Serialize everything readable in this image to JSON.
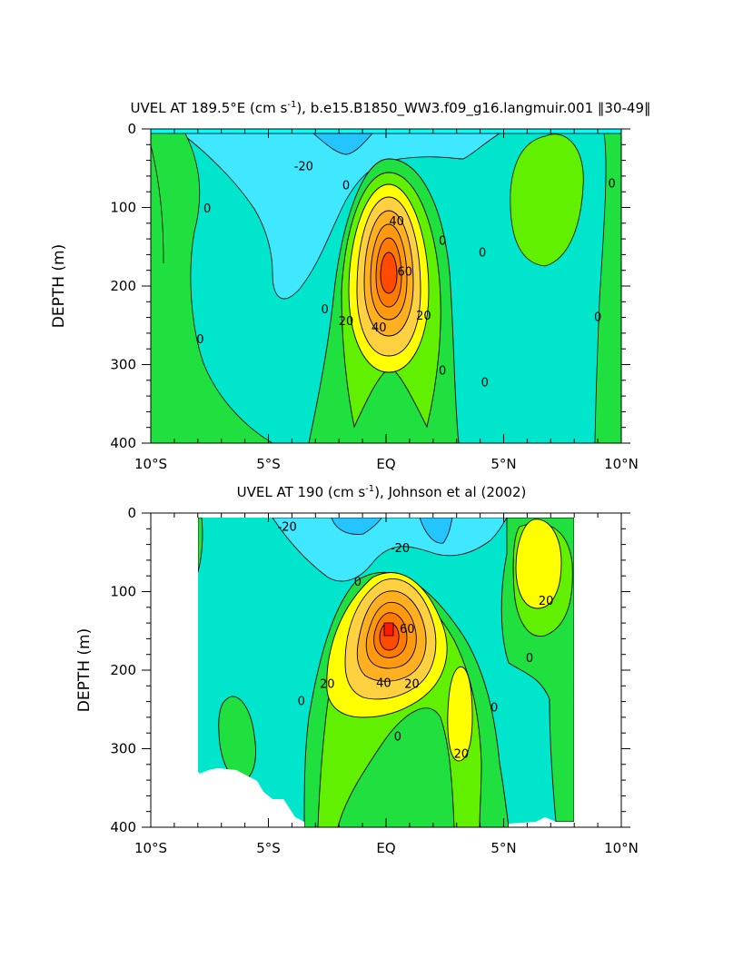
{
  "chart_data": [
    {
      "type": "heatmap",
      "subtype": "filled-contour",
      "title_pre": "UVEL AT 189.5°E (cm s",
      "title_sup": "-1",
      "title_post": "), b.e15.B1850_WW3.f09_g16.langmuir.001 ‖30-49‖",
      "xlabel": "",
      "ylabel": "DEPTH (m)",
      "xlim": [
        -10,
        10
      ],
      "ylim": [
        400,
        0
      ],
      "x_ticks": [
        {
          "value": -10,
          "label": "10°S"
        },
        {
          "value": -5,
          "label": "5°S"
        },
        {
          "value": 0,
          "label": "EQ"
        },
        {
          "value": 5,
          "label": "5°N"
        },
        {
          "value": 10,
          "label": "10°N"
        }
      ],
      "y_ticks": [
        {
          "value": 0,
          "label": "0"
        },
        {
          "value": 100,
          "label": "100"
        },
        {
          "value": 200,
          "label": "200"
        },
        {
          "value": 300,
          "label": "300"
        },
        {
          "value": 400,
          "label": "400"
        }
      ],
      "contour_interval": 10,
      "data_depth_range": [
        5,
        400
      ],
      "core": {
        "lat": 0,
        "depth": 165,
        "max_value": 75
      },
      "contour_labels": [
        {
          "text": "-20",
          "lat": -3.5,
          "depth": 48
        },
        {
          "text": "0",
          "lat": -7.6,
          "depth": 102
        },
        {
          "text": "0",
          "lat": -7.9,
          "depth": 268
        },
        {
          "text": "0",
          "lat": -1.7,
          "depth": 72
        },
        {
          "text": "0",
          "lat": -2.6,
          "depth": 230
        },
        {
          "text": "40",
          "lat": 0.45,
          "depth": 118
        },
        {
          "text": "60",
          "lat": 0.8,
          "depth": 182
        },
        {
          "text": "20",
          "lat": -1.7,
          "depth": 245
        },
        {
          "text": "40",
          "lat": -0.3,
          "depth": 253
        },
        {
          "text": "20",
          "lat": 1.6,
          "depth": 238
        },
        {
          "text": "0",
          "lat": 2.4,
          "depth": 143
        },
        {
          "text": "0",
          "lat": 2.4,
          "depth": 308
        },
        {
          "text": "0",
          "lat": 4.1,
          "depth": 158
        },
        {
          "text": "0",
          "lat": 4.2,
          "depth": 323
        },
        {
          "text": "0",
          "lat": 9.6,
          "depth": 70
        },
        {
          "text": "0",
          "lat": 9.0,
          "depth": 240
        }
      ]
    },
    {
      "type": "heatmap",
      "subtype": "filled-contour",
      "title_pre": "UVEL AT 190 (cm s",
      "title_sup": "-1",
      "title_post": "), Johnson et al (2002)",
      "xlabel": "",
      "ylabel": "DEPTH (m)",
      "xlim": [
        -10,
        10
      ],
      "ylim": [
        400,
        0
      ],
      "x_ticks": [
        {
          "value": -10,
          "label": "10°S"
        },
        {
          "value": -5,
          "label": "5°S"
        },
        {
          "value": 0,
          "label": "EQ"
        },
        {
          "value": 5,
          "label": "5°N"
        },
        {
          "value": 10,
          "label": "10°N"
        }
      ],
      "y_ticks": [
        {
          "value": 0,
          "label": "0"
        },
        {
          "value": 100,
          "label": "100"
        },
        {
          "value": 200,
          "label": "200"
        },
        {
          "value": 300,
          "label": "300"
        },
        {
          "value": 400,
          "label": "400"
        }
      ],
      "contour_interval": 10,
      "data_lat_range": [
        -8,
        8
      ],
      "data_depth_range": [
        5,
        395
      ],
      "core": {
        "lat": 0,
        "depth": 150,
        "max_value": 75
      },
      "contour_labels": [
        {
          "text": "-20",
          "lat": -4.2,
          "depth": 18
        },
        {
          "text": "-20",
          "lat": 0.6,
          "depth": 45
        },
        {
          "text": "0",
          "lat": -1.2,
          "depth": 88
        },
        {
          "text": "60",
          "lat": 0.9,
          "depth": 148
        },
        {
          "text": "20",
          "lat": -2.5,
          "depth": 218
        },
        {
          "text": "40",
          "lat": -0.1,
          "depth": 217
        },
        {
          "text": "20",
          "lat": 1.1,
          "depth": 218
        },
        {
          "text": "0",
          "lat": -3.6,
          "depth": 240
        },
        {
          "text": "0",
          "lat": 0.5,
          "depth": 285
        },
        {
          "text": "20",
          "lat": 3.2,
          "depth": 307
        },
        {
          "text": "0",
          "lat": 4.6,
          "depth": 248
        },
        {
          "text": "20",
          "lat": 6.8,
          "depth": 112
        },
        {
          "text": "0",
          "lat": 6.1,
          "depth": 185
        }
      ]
    }
  ]
}
